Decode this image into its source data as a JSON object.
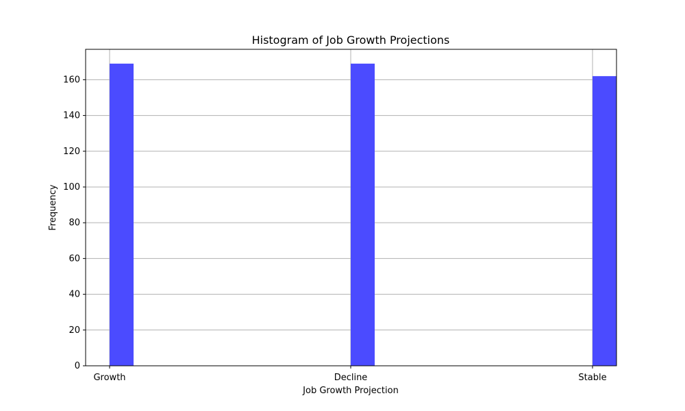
{
  "chart_data": {
    "type": "bar",
    "title": "Histogram of Job Growth Projections",
    "xlabel": "Job Growth Projection",
    "ylabel": "Frequency",
    "categories": [
      "Growth",
      "Decline",
      "Stable"
    ],
    "values": [
      169,
      169,
      162
    ],
    "ylim": [
      0,
      177
    ],
    "yticks": [
      0,
      20,
      40,
      60,
      80,
      100,
      120,
      140,
      160
    ],
    "grid": true,
    "bar_color": "#4b4bff",
    "grid_color": "#b0b0b0"
  }
}
